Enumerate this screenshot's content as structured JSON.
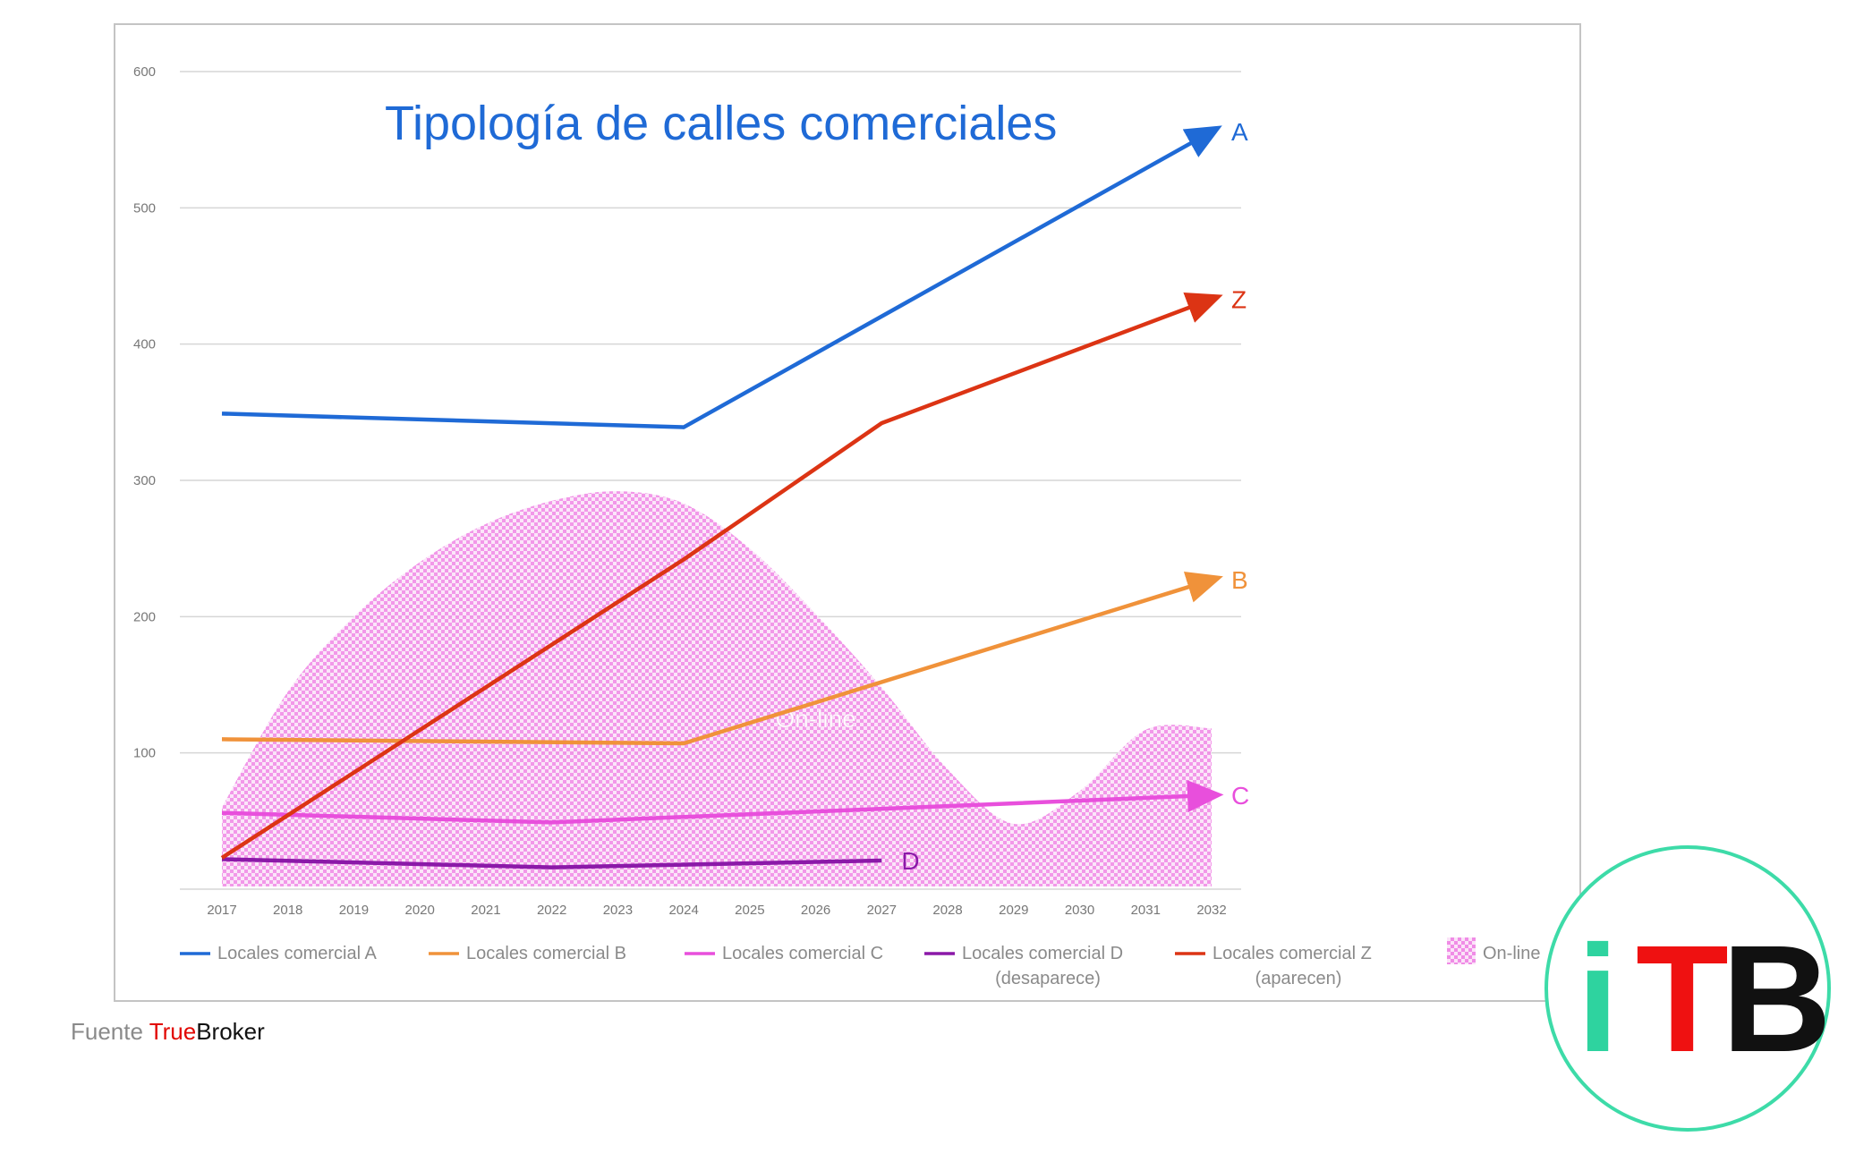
{
  "chart_data": {
    "type": "line",
    "title": "Tipología de calles comerciales",
    "xlabel": "",
    "ylabel": "",
    "x": [
      "2017",
      "2018",
      "2019",
      "2020",
      "2021",
      "2022",
      "2023",
      "2024",
      "2025",
      "2026",
      "2027",
      "2028",
      "2029",
      "2030",
      "2031",
      "2032"
    ],
    "yticks": [
      "600",
      "500",
      "400",
      "300",
      "200",
      "100"
    ],
    "ylim": [
      0,
      600
    ],
    "grid": true,
    "legend_position": "bottom",
    "series": [
      {
        "name": "Locales comercial A",
        "end_label": "A",
        "color": "#1f6ad6",
        "points": [
          [
            2017,
            349
          ],
          [
            2024,
            339
          ],
          [
            2032,
            556
          ]
        ]
      },
      {
        "name": "Locales comercial B",
        "end_label": "B",
        "color": "#f0923a",
        "points": [
          [
            2017,
            110
          ],
          [
            2024,
            107
          ],
          [
            2032,
            227
          ]
        ]
      },
      {
        "name": "Locales comercial C",
        "end_label": "C",
        "color": "#e84fdc",
        "points": [
          [
            2017,
            56
          ],
          [
            2022,
            49
          ],
          [
            2032,
            69
          ]
        ]
      },
      {
        "name_line1": "Locales comercial D",
        "name_line2": "(desaparece)",
        "end_label": "D",
        "color": "#8b19a8",
        "points": [
          [
            2017,
            22
          ],
          [
            2022,
            16
          ],
          [
            2027,
            21
          ]
        ]
      },
      {
        "name_line1": "Locales comercial  Z",
        "name_line2": "(aparecen)",
        "end_label": "Z",
        "color": "#dc3414",
        "points": [
          [
            2017,
            23
          ],
          [
            2024,
            242
          ],
          [
            2027,
            342
          ],
          [
            2032,
            433
          ]
        ]
      }
    ],
    "area": {
      "name": "On-line",
      "label": "On-line",
      "color": "#f08ce6",
      "points": [
        [
          2017,
          60
        ],
        [
          2018,
          145
        ],
        [
          2019,
          200
        ],
        [
          2020,
          240
        ],
        [
          2021,
          268
        ],
        [
          2022,
          285
        ],
        [
          2023,
          292
        ],
        [
          2024,
          283
        ],
        [
          2025,
          250
        ],
        [
          2026,
          202
        ],
        [
          2027,
          148
        ],
        [
          2028,
          88
        ],
        [
          2029,
          48
        ],
        [
          2030,
          72
        ],
        [
          2031,
          117
        ],
        [
          2032,
          118
        ]
      ]
    }
  },
  "source": {
    "prefix": "Fuente ",
    "brand_red": "True",
    "brand_black": "Broker"
  },
  "logo": {
    "letters": [
      "i",
      "T",
      "B"
    ],
    "colors": [
      "#2ed39f",
      "#ef1111",
      "#111111"
    ],
    "ring_color": "#3ddba8"
  }
}
